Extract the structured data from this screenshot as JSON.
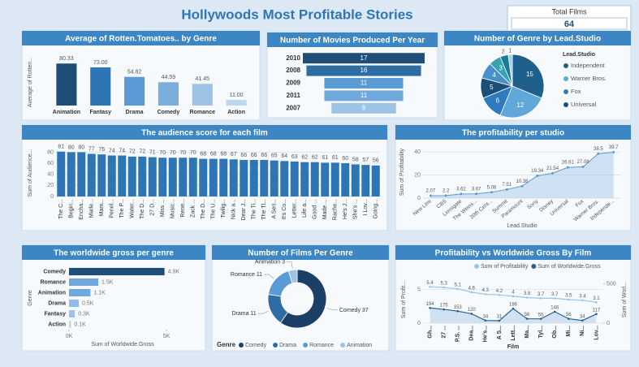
{
  "title": "Hollywoods Most Profitable Stories",
  "card": {
    "label": "Total Films",
    "value": 64
  },
  "chart_data": [
    {
      "type": "bar",
      "title": "Average of Rotten.Tomatoes.. by Genre",
      "ylabel": "Average of Rotten...",
      "categories": [
        "Animation",
        "Fantasy",
        "Drama",
        "Comedy",
        "Romance",
        "Action"
      ],
      "values": [
        80.33,
        73,
        54.82,
        44.59,
        41.45,
        11
      ],
      "value_labels": [
        "80.33",
        "73.00",
        "54.82",
        "44.59",
        "41.45",
        "11.00"
      ],
      "colors": [
        "#1f4e79",
        "#2e75b6",
        "#5b9bd5",
        "#7aaedc",
        "#9dc3e6",
        "#bdd7ee"
      ],
      "ylim": [
        0,
        90
      ]
    },
    {
      "type": "funnel",
      "title": "Number of Movies Produced Per Year",
      "categories": [
        "2010",
        "2008",
        "2009",
        "2011",
        "2007"
      ],
      "values": [
        17,
        16,
        11,
        11,
        9
      ],
      "colors": [
        "#1f4e79",
        "#2e6da4",
        "#5b9bd5",
        "#6fa8dc",
        "#9dc3e6"
      ]
    },
    {
      "type": "pie",
      "title": "Number of Genre by Lead.Studio",
      "legend_title": "Lead.Studio",
      "categories": [
        "Independent",
        "Warner Bros.",
        "Fox",
        "Universal",
        null,
        null,
        null,
        null
      ],
      "values": [
        15,
        12,
        6,
        5,
        4,
        3,
        2,
        1
      ],
      "colors": [
        "#1f5f8b",
        "#5fa8d9",
        "#2f7bbf",
        "#1b4f7a",
        "#4a90c8",
        "#36a3b5",
        "#1a7a9c",
        "#9dd0e8"
      ]
    },
    {
      "type": "bar",
      "title": "The audience score for each film",
      "ylabel": "Sum of Audience...",
      "categories": [
        "The C...",
        "Begin...",
        "Encha...",
        "Marle...",
        "Mam...",
        "Penel...",
        "The P...",
        "Water...",
        "The D...",
        "27 D...",
        "Miss ...",
        "Music...",
        "Rene...",
        "Zack ...",
        "The D...",
        "The U...",
        "Twilig...",
        "Nick a...",
        "Dear J...",
        "The Ti...",
        "The Tl...",
        "A Seri...",
        "It's Co...",
        "Letter...",
        "Life a...",
        "Good ...",
        "Made ...",
        "Rache...",
        "He's J...",
        "She's ...",
        "I Lov...",
        "Going..."
      ],
      "values": [
        81,
        80,
        80,
        77,
        76,
        74,
        74,
        72,
        72,
        71,
        70,
        70,
        70,
        70,
        68,
        68,
        68,
        67,
        66,
        66,
        66,
        65,
        64,
        63,
        62,
        62,
        61,
        61,
        60,
        58,
        57,
        56
      ],
      "color": "#2e75b6",
      "ylim": [
        0,
        85
      ],
      "yticks": [
        0,
        20,
        40,
        60,
        80
      ]
    },
    {
      "type": "area",
      "title": "The profitability per studio",
      "xlabel": "Lead.Studio",
      "ylabel": "Sum of Profitability",
      "categories": [
        "New Line",
        "CBS",
        "Lionsgate",
        "The Weins...",
        "20th Cent...",
        "Summit",
        "Paramount",
        "Sony",
        "Disney",
        "Universal",
        "Fox",
        "Warner Bros.",
        "Independe..."
      ],
      "values": [
        2.07,
        2.2,
        3.62,
        3.67,
        5.06,
        7.51,
        10.38,
        19.34,
        21.54,
        26.61,
        27.08,
        38.5,
        39.7
      ],
      "color": "#9dc3e6",
      "ylim": [
        0,
        45
      ],
      "yticks": [
        0,
        20,
        40
      ]
    },
    {
      "type": "bar",
      "orientation": "horizontal",
      "title": "The worldwide gross per genre",
      "ylabel": "Genre",
      "xlabel": "Sum of Worldwide.Gross",
      "categories": [
        "Comedy",
        "Romance",
        "Animation",
        "Drama",
        "Fantasy",
        "Action"
      ],
      "values": [
        4900,
        1500,
        1100,
        500,
        300,
        100
      ],
      "value_labels": [
        "4.9K",
        "1.5K",
        "1.1K",
        "0.5K",
        "0.3K",
        "0.1K"
      ],
      "colors": [
        "#1f4e79",
        "#6fa8dc",
        "#6fa8dc",
        "#8fbce6",
        "#9dc3e6",
        "#bdd7ee"
      ],
      "xlim": [
        0,
        5500
      ],
      "xticks": [
        {
          "value": 0,
          "label": "0K"
        },
        {
          "value": 5000,
          "label": "5K"
        }
      ]
    },
    {
      "type": "donut",
      "title": "Number of Films Per Genre",
      "legend_title": "Genre",
      "categories": [
        "Comedy",
        "Drama",
        "Romance",
        "Animation"
      ],
      "values": [
        37,
        11,
        11,
        3
      ],
      "colors": [
        "#1b3f66",
        "#2e6da4",
        "#5b9bd5",
        "#9dc3e6"
      ]
    },
    {
      "type": "combo",
      "title": "Profitability vs Worldwide Gross By Film",
      "xlabel": "Film",
      "ylabel": "Sum of Profit...",
      "y2label": "Sum of Worl...",
      "categories": [
        "Gh...",
        "27 ...",
        "P.S. ...",
        "Dea...",
        "He's...",
        "A S...",
        "Lett...",
        "Ma...",
        "Tyl...",
        "Ob...",
        "Mi...",
        "Ni...",
        "Lov..."
      ],
      "series": [
        {
          "name": "Sum of Profitability",
          "color": "#9dc3e6",
          "values": [
            5.4,
            5.3,
            5.1,
            4.6,
            4.3,
            4.2,
            4.0,
            3.8,
            3.7,
            3.7,
            3.5,
            3.4,
            3.1
          ]
        },
        {
          "name": "Sum of Worldwide.Gross",
          "color": "#2e5f8a",
          "axis": "y2",
          "values": [
            194,
            175,
            153,
            120,
            34,
            31,
            186,
            56,
            55,
            146,
            56,
            34,
            117
          ]
        }
      ],
      "ylim": [
        0,
        7
      ],
      "yticks": [
        0,
        5
      ],
      "y2lim": [
        0,
        600
      ],
      "y2ticks": [
        0,
        500
      ]
    }
  ]
}
